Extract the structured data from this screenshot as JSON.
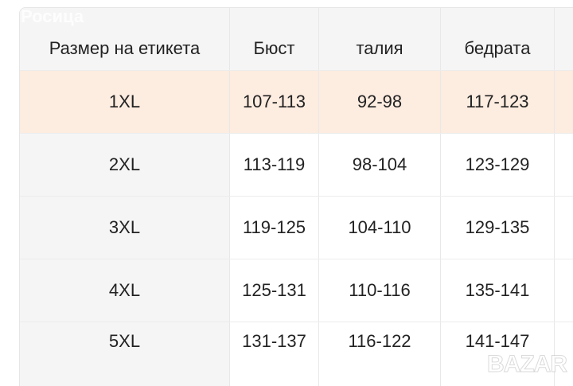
{
  "table": {
    "headers": [
      "Размер на етикета",
      "Бюст",
      "талия",
      "бедрата",
      ""
    ],
    "rows": [
      [
        "1XL",
        "107-113",
        "92-98",
        "117-123",
        ""
      ],
      [
        "2XL",
        "113-119",
        "98-104",
        "123-129",
        ""
      ],
      [
        "3XL",
        "119-125",
        "104-110",
        "129-135",
        ""
      ],
      [
        "4XL",
        "125-131",
        "110-116",
        "135-141",
        ""
      ],
      [
        "5XL",
        "131-137",
        "116-122",
        "141-147",
        ""
      ]
    ],
    "highlight_row": 0,
    "highlight_color": "#fdece0"
  },
  "watermarks": {
    "top": "Росица",
    "bottom": "BAZAR"
  }
}
